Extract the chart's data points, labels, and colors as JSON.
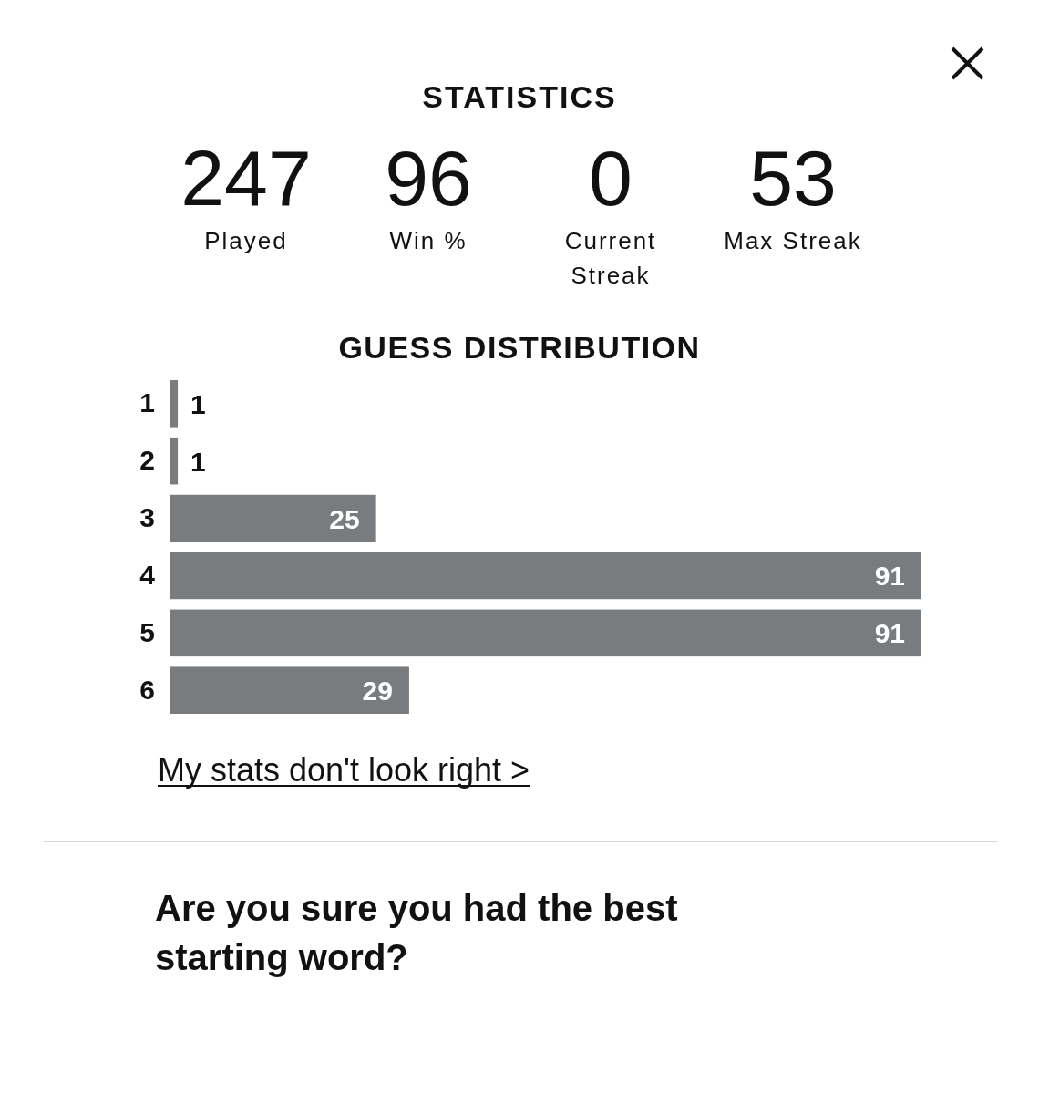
{
  "chart_data": [
    {
      "type": "other",
      "title": "STATISTICS",
      "annotations": [
        "247",
        "Played",
        "96",
        "Win %",
        "0",
        "Current Streak",
        "53",
        "Max Streak"
      ]
    },
    {
      "type": "bar",
      "orientation": "horizontal",
      "title": "GUESS DISTRIBUTION",
      "categories": [
        "1",
        "2",
        "3",
        "4",
        "5",
        "6"
      ],
      "values": [
        1,
        1,
        25,
        91,
        91,
        29
      ],
      "color": "#787c7e",
      "data_labels": true,
      "annotations": [
        "My stats don't look right >"
      ]
    },
    {
      "type": "other",
      "annotations": [
        "Are you sure you had the best starting word?"
      ]
    }
  ]
}
